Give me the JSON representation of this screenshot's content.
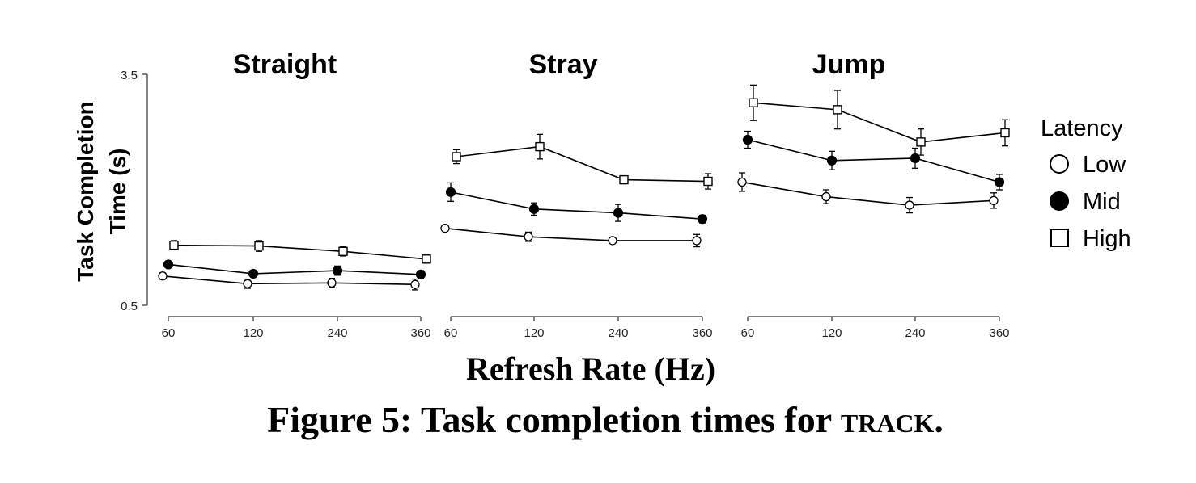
{
  "chart_data": {
    "type": "line",
    "ylabel_lines": [
      "Task Completion",
      "Time (s)"
    ],
    "xlabel": "Refresh Rate (Hz)",
    "caption_prefix": "Figure 5: Task completion times for ",
    "caption_smallcaps": "track",
    "caption_suffix": ".",
    "ylim": [
      0.5,
      3.5
    ],
    "yticks": [
      "3.5",
      "0.5"
    ],
    "categories": [
      "60",
      "120",
      "240",
      "360"
    ],
    "legend_title": "Latency",
    "legend_position": "right",
    "panels": [
      {
        "title": "Straight",
        "series": [
          {
            "name": "Low",
            "marker": "circle-open",
            "values": [
              0.88,
              0.78,
              0.79,
              0.77
            ],
            "errors": [
              0.04,
              0.06,
              0.06,
              0.07
            ]
          },
          {
            "name": "Mid",
            "marker": "circle-filled",
            "values": [
              1.03,
              0.91,
              0.95,
              0.9
            ],
            "errors": [
              0.04,
              0.04,
              0.06,
              0.05
            ]
          },
          {
            "name": "High",
            "marker": "square-open",
            "values": [
              1.28,
              1.27,
              1.2,
              1.1
            ],
            "errors": [
              0.06,
              0.07,
              0.06,
              0.04
            ]
          }
        ]
      },
      {
        "title": "Stray",
        "series": [
          {
            "name": "Low",
            "marker": "circle-open",
            "values": [
              1.5,
              1.39,
              1.34,
              1.34
            ],
            "errors": [
              0.03,
              0.06,
              0.03,
              0.08
            ]
          },
          {
            "name": "Mid",
            "marker": "circle-filled",
            "values": [
              1.97,
              1.75,
              1.7,
              1.62
            ],
            "errors": [
              0.12,
              0.08,
              0.11,
              0.05
            ]
          },
          {
            "name": "High",
            "marker": "square-open",
            "values": [
              2.43,
              2.56,
              2.13,
              2.11
            ],
            "errors": [
              0.09,
              0.16,
              0.03,
              0.1
            ]
          }
        ]
      },
      {
        "title": "Jump",
        "series": [
          {
            "name": "Low",
            "marker": "circle-open",
            "values": [
              2.1,
              1.91,
              1.8,
              1.86
            ],
            "errors": [
              0.12,
              0.09,
              0.1,
              0.1
            ]
          },
          {
            "name": "Mid",
            "marker": "circle-filled",
            "values": [
              2.65,
              2.38,
              2.41,
              2.1
            ],
            "errors": [
              0.11,
              0.12,
              0.13,
              0.1
            ]
          },
          {
            "name": "High",
            "marker": "square-open",
            "values": [
              3.13,
              3.04,
              2.62,
              2.74
            ],
            "errors": [
              0.23,
              0.25,
              0.17,
              0.17
            ]
          }
        ]
      }
    ]
  }
}
